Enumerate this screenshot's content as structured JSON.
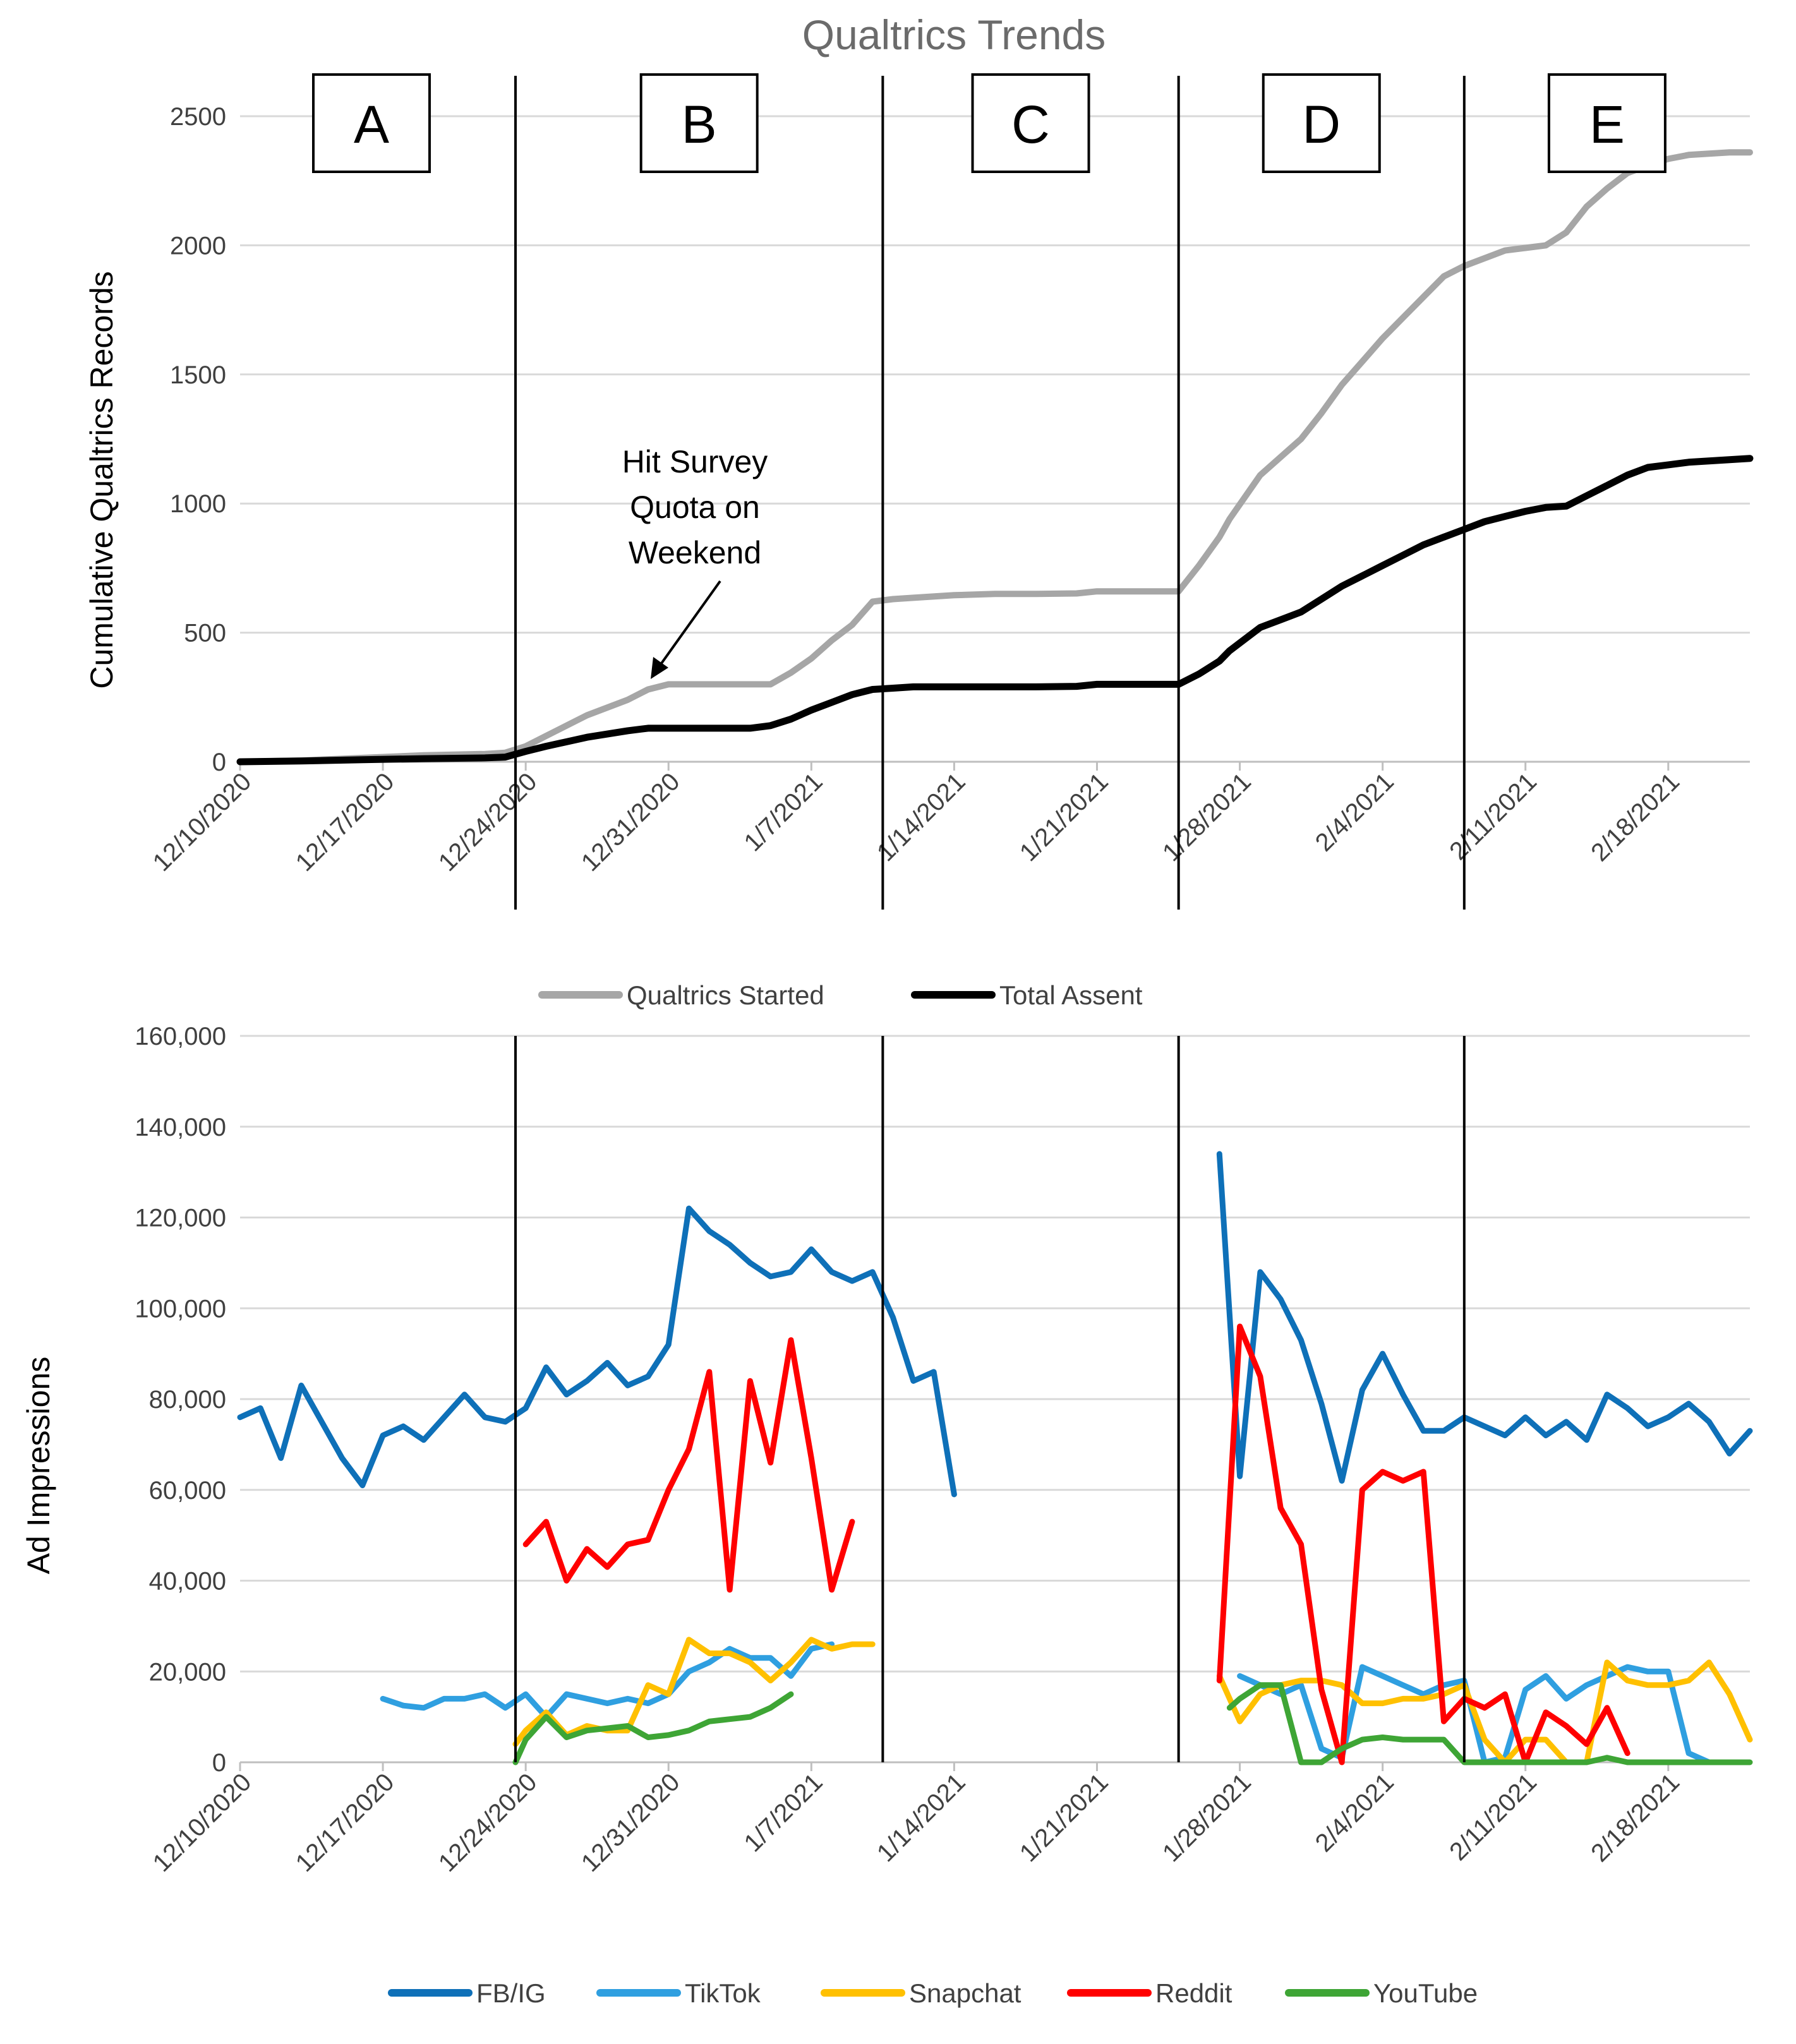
{
  "chart_data": [
    {
      "type": "line",
      "title": "Qualtrics Trends",
      "ylabel": "Cumulative Qualtrics Records",
      "xlabel": "",
      "ylim": [
        0,
        2500
      ],
      "yticks": [
        "0",
        "500",
        "1000",
        "1500",
        "2000",
        "2500"
      ],
      "ytick_values": [
        0,
        500,
        1000,
        1500,
        2000,
        2500
      ],
      "xlim": [
        0,
        74
      ],
      "xticks": [
        "12/10/2020",
        "12/17/2020",
        "12/24/2020",
        "12/31/2020",
        "1/7/2021",
        "1/14/2021",
        "1/21/2021",
        "1/28/2021",
        "2/4/2021",
        "2/11/2021",
        "2/18/2021"
      ],
      "xtick_values": [
        0,
        7,
        14,
        21,
        28,
        35,
        42,
        49,
        56,
        63,
        70
      ],
      "x_unit": "days since 12/10/2020",
      "grid": "horizontal",
      "legend_position": "bottom",
      "series": [
        {
          "name": "Qualtrics Started",
          "color": "#a6a6a6",
          "x": [
            0,
            3,
            6,
            9,
            12,
            13,
            14,
            15,
            17,
            19,
            20,
            21,
            22,
            23,
            24,
            25,
            26,
            27,
            28,
            29,
            30,
            31,
            32,
            33,
            35,
            37,
            39,
            41,
            42,
            43,
            44,
            45,
            46,
            47,
            48,
            48.5,
            50,
            52,
            53,
            54,
            55,
            56,
            57,
            58,
            59,
            60,
            61,
            62,
            63,
            64,
            65,
            66,
            67,
            68,
            69,
            70,
            71,
            72,
            73,
            74
          ],
          "y": [
            0,
            5,
            15,
            25,
            30,
            35,
            60,
            100,
            180,
            240,
            280,
            300,
            300,
            300,
            300,
            300,
            300,
            345,
            400,
            470,
            530,
            620,
            630,
            635,
            645,
            650,
            650,
            652,
            660,
            660,
            660,
            660,
            660,
            760,
            870,
            940,
            1110,
            1250,
            1350,
            1460,
            1550,
            1640,
            1720,
            1800,
            1880,
            1920,
            1950,
            1980,
            1990,
            2000,
            2050,
            2150,
            2220,
            2280,
            2310,
            2335,
            2350,
            2355,
            2360,
            2360
          ]
        },
        {
          "name": "Total Assent",
          "color": "#000000",
          "x": [
            0,
            3,
            6,
            9,
            12,
            13,
            14,
            15,
            17,
            19,
            20,
            21,
            22,
            23,
            24,
            25,
            26,
            27,
            28,
            29,
            30,
            31,
            32,
            33,
            35,
            37,
            39,
            41,
            42,
            43,
            44,
            45,
            46,
            47,
            48,
            48.5,
            50,
            52,
            53,
            54,
            55,
            56,
            57,
            58,
            59,
            60,
            61,
            62,
            63,
            64,
            65,
            66,
            67,
            68,
            69,
            70,
            71,
            72,
            73,
            74
          ],
          "y": [
            0,
            3,
            8,
            12,
            15,
            18,
            40,
            60,
            95,
            120,
            130,
            130,
            130,
            130,
            130,
            130,
            140,
            165,
            200,
            230,
            260,
            280,
            285,
            290,
            290,
            290,
            290,
            292,
            300,
            300,
            300,
            300,
            300,
            340,
            390,
            430,
            520,
            580,
            630,
            680,
            720,
            760,
            800,
            840,
            870,
            900,
            930,
            950,
            970,
            985,
            990,
            1030,
            1070,
            1110,
            1140,
            1150,
            1160,
            1165,
            1170,
            1175
          ]
        }
      ],
      "phases": [
        {
          "label": "A",
          "start": 0,
          "end": 13.5
        },
        {
          "label": "B",
          "start": 13.5,
          "end": 31.5
        },
        {
          "label": "C",
          "start": 31.5,
          "end": 46
        },
        {
          "label": "D",
          "start": 46,
          "end": 60
        },
        {
          "label": "E",
          "start": 60,
          "end": 74
        }
      ],
      "phase_dividers": [
        13.5,
        31.5,
        46,
        60
      ],
      "annotation": {
        "lines": [
          "Hit Survey",
          "Quota on",
          "Weekend"
        ],
        "points_to": {
          "x": 20,
          "y": 300
        }
      }
    },
    {
      "type": "line",
      "title": "",
      "ylabel": "Ad Impressions",
      "xlabel": "",
      "ylim": [
        0,
        160000
      ],
      "yticks": [
        "0",
        "20,000",
        "40,000",
        "60,000",
        "80,000",
        "100,000",
        "120,000",
        "140,000",
        "160,000"
      ],
      "ytick_values": [
        0,
        20000,
        40000,
        60000,
        80000,
        100000,
        120000,
        140000,
        160000
      ],
      "xlim": [
        0,
        74
      ],
      "xticks": [
        "12/10/2020",
        "12/17/2020",
        "12/24/2020",
        "12/31/2020",
        "1/7/2021",
        "1/14/2021",
        "1/21/2021",
        "1/28/2021",
        "2/4/2021",
        "2/11/2021",
        "2/18/2021"
      ],
      "xtick_values": [
        0,
        7,
        14,
        21,
        28,
        35,
        42,
        49,
        56,
        63,
        70
      ],
      "x_unit": "days since 12/10/2020",
      "grid": "horizontal",
      "legend_position": "bottom",
      "series": [
        {
          "name": "FB/IG",
          "color": "#0e70b8",
          "segments": [
            {
              "x": [
                0,
                1,
                2,
                3,
                4,
                5,
                6,
                7,
                8,
                9,
                10,
                11,
                12,
                13,
                14,
                15,
                16,
                17,
                18,
                19,
                20,
                21,
                22,
                23,
                24,
                25,
                26,
                27,
                28,
                29,
                30,
                31,
                32,
                33,
                34,
                35
              ],
              "y": [
                76000,
                78000,
                67000,
                83000,
                75000,
                67000,
                61000,
                72000,
                74000,
                71000,
                76000,
                81000,
                76000,
                75000,
                78000,
                87000,
                81000,
                84000,
                88000,
                83000,
                85000,
                92000,
                122000,
                117000,
                114000,
                110000,
                107000,
                108000,
                113000,
                108000,
                106000,
                108000,
                98000,
                84000,
                86000,
                59000
              ]
            },
            {
              "x": [
                48,
                49,
                50,
                51,
                52,
                53,
                54,
                55,
                56,
                57,
                58,
                59,
                60,
                61,
                62,
                63,
                64,
                65,
                66,
                67,
                68,
                69,
                70,
                71,
                72,
                73,
                74
              ],
              "y": [
                134000,
                63000,
                108000,
                102000,
                93000,
                79000,
                62000,
                82000,
                90000,
                81000,
                73000,
                73000,
                76000,
                74000,
                72000,
                76000,
                72000,
                75000,
                71000,
                81000,
                78000,
                74000,
                76000,
                79000,
                75000,
                68000,
                73000
              ]
            }
          ]
        },
        {
          "name": "TikTok",
          "color": "#2f9fe0",
          "segments": [
            {
              "x": [
                7,
                8,
                9,
                10,
                11,
                12,
                13,
                14,
                15,
                16,
                17,
                18,
                19,
                20,
                21,
                22,
                23,
                24,
                25,
                26,
                27,
                28,
                29
              ],
              "y": [
                14000,
                12500,
                12000,
                14000,
                14000,
                15000,
                12000,
                15000,
                10000,
                15000,
                14000,
                13000,
                14000,
                13000,
                15000,
                20000,
                22000,
                25000,
                23000,
                23000,
                19000,
                25000,
                26000
              ]
            },
            {
              "x": [
                49,
                50,
                51,
                52,
                53,
                54,
                55,
                56,
                57,
                58,
                59,
                60,
                61,
                62,
                63,
                64,
                65,
                66,
                67,
                68,
                69,
                70,
                71,
                72
              ],
              "y": [
                19000,
                17000,
                15000,
                17000,
                3000,
                1000,
                21000,
                19000,
                17000,
                15000,
                17000,
                18000,
                0,
                1000,
                16000,
                19000,
                14000,
                17000,
                19000,
                21000,
                20000,
                20000,
                2000,
                0
              ]
            }
          ]
        },
        {
          "name": "Snapchat",
          "color": "#ffc000",
          "segments": [
            {
              "x": [
                13.5,
                14,
                15,
                16,
                17,
                18,
                19,
                20,
                21,
                22,
                23,
                24,
                25,
                26,
                27,
                28,
                29,
                30,
                31
              ],
              "y": [
                4000,
                7000,
                11000,
                6000,
                8000,
                7000,
                7000,
                17000,
                15000,
                27000,
                24000,
                24000,
                22000,
                18000,
                22000,
                27000,
                25000,
                26000,
                26000
              ]
            },
            {
              "x": [
                48,
                49,
                50,
                51,
                52,
                53,
                54,
                55,
                56,
                57,
                58,
                59,
                60,
                61,
                62,
                63,
                64,
                65,
                66,
                67,
                68,
                69,
                70,
                71,
                72,
                73,
                74
              ],
              "y": [
                19000,
                9000,
                15000,
                17000,
                18000,
                18000,
                17000,
                13000,
                13000,
                14000,
                14000,
                15000,
                17000,
                5000,
                0,
                5000,
                5000,
                0,
                0,
                22000,
                18000,
                17000,
                17000,
                18000,
                22000,
                15000,
                5000
              ]
            }
          ]
        },
        {
          "name": "Reddit",
          "color": "#ff0000",
          "segments": [
            {
              "x": [
                14,
                15,
                16,
                17,
                18,
                19,
                20,
                21,
                22,
                23,
                24,
                25,
                26,
                27,
                28,
                29,
                30
              ],
              "y": [
                48000,
                53000,
                40000,
                47000,
                43000,
                48000,
                49000,
                60000,
                69000,
                86000,
                38000,
                84000,
                66000,
                93000,
                67000,
                38000,
                53000
              ]
            },
            {
              "x": [
                48,
                49,
                50,
                51,
                52,
                53,
                54,
                55,
                56,
                57,
                58,
                59,
                60,
                61,
                62,
                63,
                64,
                65,
                66,
                67,
                68
              ],
              "y": [
                18000,
                96000,
                85000,
                56000,
                48000,
                16000,
                0,
                60000,
                64000,
                62000,
                64000,
                9000,
                14000,
                12000,
                15000,
                0,
                11000,
                8000,
                4000,
                12000,
                2000
              ]
            }
          ]
        },
        {
          "name": "YouTube",
          "color": "#3ea535",
          "segments": [
            {
              "x": [
                13.5,
                14,
                15,
                16,
                17,
                18,
                19,
                20,
                21,
                22,
                23,
                24,
                25,
                26,
                27
              ],
              "y": [
                0,
                5000,
                10000,
                5500,
                7000,
                7500,
                8000,
                5500,
                6000,
                7000,
                9000,
                9500,
                10000,
                12000,
                15000
              ]
            },
            {
              "x": [
                48.5,
                49,
                50,
                51,
                52,
                53,
                54,
                55,
                56,
                57,
                58,
                59,
                60,
                61,
                62,
                63,
                64,
                65,
                66,
                67,
                68,
                69,
                70,
                71,
                72,
                73,
                74
              ],
              "y": [
                12000,
                14000,
                17000,
                17000,
                0,
                0,
                3000,
                5000,
                5500,
                5000,
                5000,
                5000,
                0,
                0,
                0,
                0,
                0,
                0,
                0,
                1000,
                0,
                0,
                0,
                0,
                0,
                0,
                0
              ]
            }
          ]
        }
      ],
      "phase_dividers": [
        13.5,
        31.5,
        46,
        60
      ]
    }
  ]
}
